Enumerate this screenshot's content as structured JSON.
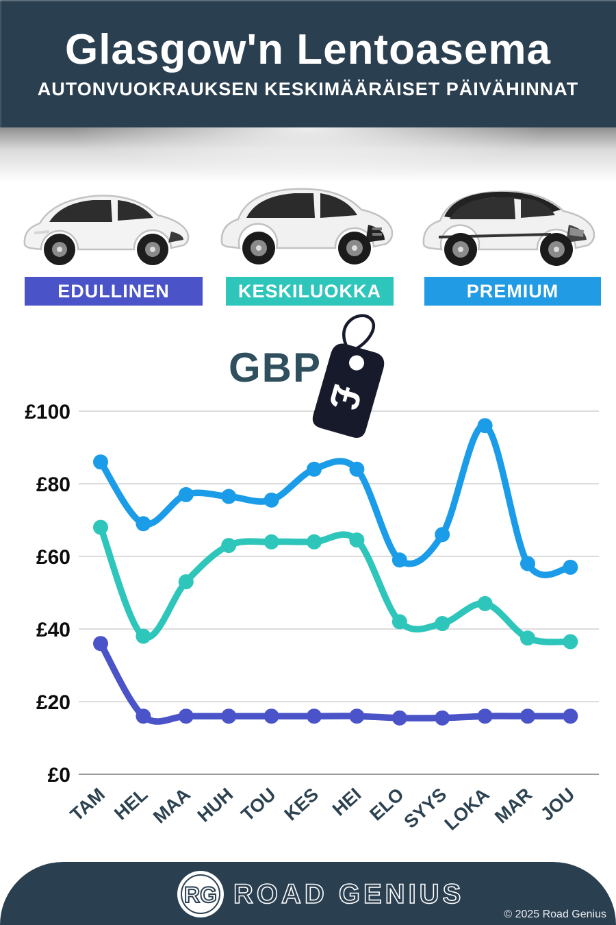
{
  "header": {
    "title": "Glasgow'n Lentoasema",
    "subtitle": "AUTONVUOKRAUKSEN KESKIMÄÄRÄISET PÄIVÄHINNAT",
    "bg_color": "#2a3f50"
  },
  "categories": [
    {
      "label": "EDULLINEN",
      "color": "#4a53c8",
      "car": "white-hatchback"
    },
    {
      "label": "KESKILUOKKA",
      "color": "#2ec5bb",
      "car": "white-midsize-suv"
    },
    {
      "label": "PREMIUM",
      "color": "#219be4",
      "car": "white-premium-suv-black-roof"
    }
  ],
  "currency": {
    "code": "GBP",
    "symbol": "£",
    "tag_icon": "price-tag",
    "tag_color": "#171a2b"
  },
  "chart_data": {
    "type": "line",
    "categories": [
      "TAM",
      "HEL",
      "MAA",
      "HUH",
      "TOU",
      "KES",
      "HEI",
      "ELO",
      "SYYS",
      "LOKA",
      "MAR",
      "JOU"
    ],
    "series": [
      {
        "name": "EDULLINEN",
        "color": "#4a53c8",
        "values": [
          36,
          16,
          16,
          16,
          16,
          16,
          16,
          15.5,
          15.5,
          16,
          16,
          16
        ]
      },
      {
        "name": "KESKILUOKKA",
        "color": "#2ec5bb",
        "values": [
          68,
          38,
          53,
          63,
          64,
          64,
          64.5,
          42,
          41.5,
          47,
          37.5,
          36.5
        ]
      },
      {
        "name": "PREMIUM",
        "color": "#1b9ce8",
        "values": [
          86,
          69,
          77,
          76.5,
          75.5,
          84,
          84,
          59,
          66,
          96,
          58,
          57
        ]
      }
    ],
    "title": "Glasgow'n Lentoasema — autonvuokrauksen keskimääräiset päivähinnat (GBP)",
    "xlabel": "",
    "ylabel": "",
    "ylim": [
      0,
      100
    ],
    "grid": true,
    "legend_position": "badges-above-chart",
    "y_ticks": [
      {
        "label": "£0",
        "value": 0
      },
      {
        "label": "£20",
        "value": 20
      },
      {
        "label": "£40",
        "value": 40
      },
      {
        "label": "£60",
        "value": 60
      },
      {
        "label": "£80",
        "value": 80
      },
      {
        "label": "£100",
        "value": 100
      }
    ]
  },
  "footer": {
    "logo_initials": "RG",
    "brand": "ROAD GENIUS",
    "copyright": "© 2025 Road Genius",
    "bg_color": "#2a3f50"
  }
}
